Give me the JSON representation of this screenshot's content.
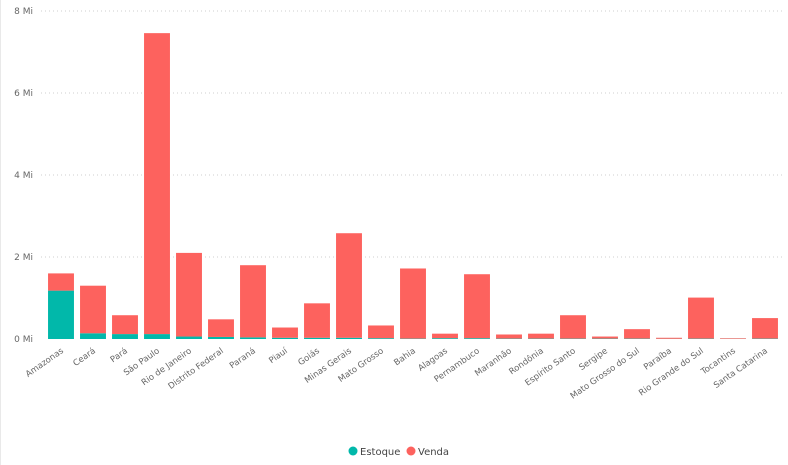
{
  "chart_data": {
    "type": "bar",
    "stacked": true,
    "categories": [
      "Amazonas",
      "Ceará",
      "Pará",
      "São Paulo",
      "Rio de Janeiro",
      "Distrito Federal",
      "Paraná",
      "Piauí",
      "Goiás",
      "Minas Gerais",
      "Mato Grosso",
      "Bahia",
      "Alagoas",
      "Pernambuco",
      "Maranhão",
      "Rondônia",
      "Espírito Santo",
      "Sergipe",
      "Mato Grosso do Sul",
      "Paraíba",
      "Rio Grande do Sul",
      "Tocantins",
      "Santa Catarina"
    ],
    "series": [
      {
        "name": "Estoque",
        "color": "#01B8AA",
        "values": [
          1.18,
          0.14,
          0.12,
          0.12,
          0.06,
          0.05,
          0.04,
          0.03,
          0.03,
          0.03,
          0.02,
          0.01,
          0.02,
          0.02,
          0.01,
          0.01,
          0.01,
          0.01,
          0.01,
          0.005,
          0.01,
          0.005,
          0.01
        ]
      },
      {
        "name": "Venda",
        "color": "#FD625E",
        "values": [
          0.42,
          1.16,
          0.46,
          7.34,
          2.04,
          0.43,
          1.76,
          0.25,
          0.84,
          2.55,
          0.31,
          1.71,
          0.11,
          1.56,
          0.1,
          0.12,
          0.57,
          0.05,
          0.23,
          0.025,
          1.0,
          0.015,
          0.5
        ]
      }
    ],
    "unit": "Mi",
    "ylim": [
      0,
      8
    ],
    "yticks": [
      0,
      2,
      4,
      6,
      8
    ],
    "ytick_labels": [
      "0 Mi",
      "2 Mi",
      "4 Mi",
      "6 Mi",
      "8 Mi"
    ],
    "grid": true,
    "legend_position": "bottom-center",
    "title": "",
    "xlabel": "",
    "ylabel": ""
  }
}
